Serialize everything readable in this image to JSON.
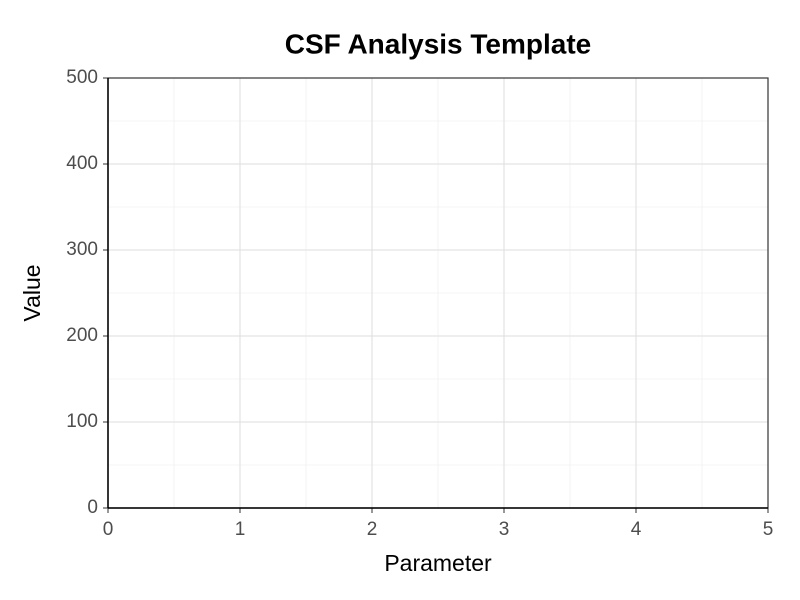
{
  "chart_data": {
    "type": "scatter",
    "title": "CSF Analysis Template",
    "x_label": "Parameter",
    "y_label": "Value",
    "series": [],
    "xlim": [
      0,
      5
    ],
    "xticks": [
      0,
      1,
      2,
      3,
      4,
      5
    ],
    "ylim": [
      0,
      500
    ],
    "yticks": [
      0,
      100,
      200,
      300,
      400,
      500
    ],
    "grid": true,
    "minor_grid": true
  }
}
